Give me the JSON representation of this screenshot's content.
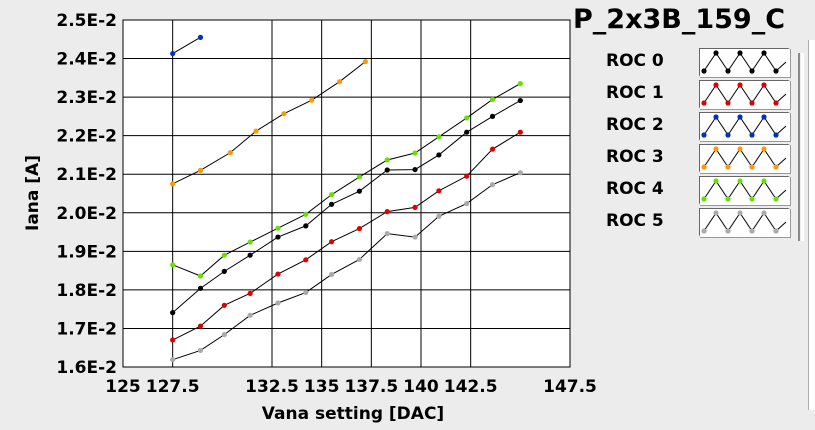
{
  "chart_data": {
    "type": "line",
    "title": "P_2x3B_159_C",
    "xlabel": "Vana setting [DAC]",
    "ylabel": "Iana [A]",
    "xlim": [
      125,
      147.5
    ],
    "ylim": [
      0.016,
      0.025
    ],
    "x_ticks": [
      125,
      127.5,
      132.5,
      135,
      137.5,
      140,
      142.5,
      147.5
    ],
    "x_tick_labels": [
      "125",
      "127.5",
      "132.5",
      "135",
      "137.5",
      "140",
      "142.5",
      "147.5"
    ],
    "y_ticks": [
      0.016,
      0.017,
      0.018,
      0.019,
      0.02,
      0.021,
      0.022,
      0.023,
      0.024,
      0.025
    ],
    "y_tick_labels": [
      "1.6E-2",
      "1.7E-2",
      "1.8E-2",
      "1.9E-2",
      "2.0E-2",
      "2.1E-2",
      "2.2E-2",
      "2.3E-2",
      "2.4E-2",
      "2.5E-2"
    ],
    "grid": true,
    "legend_position": "right",
    "series": [
      {
        "name": "ROC 0",
        "color": "#000000",
        "x": [
          127.5,
          128.9,
          130.1,
          131.4,
          132.8,
          134.2,
          135.5,
          136.9,
          138.3,
          139.7,
          140.9,
          142.3,
          143.6,
          145.0
        ],
        "y": [
          0.01741,
          0.01804,
          0.01848,
          0.0189,
          0.01937,
          0.01966,
          0.02022,
          0.02056,
          0.02111,
          0.02112,
          0.0215,
          0.02209,
          0.0225,
          0.02291
        ]
      },
      {
        "name": "ROC 0",
        "color": "#000000",
        "hidden_dup": true,
        "x": [],
        "y": []
      },
      {
        "name": "ROC 1",
        "color": "#e00000",
        "x": [
          127.5,
          128.9,
          130.1,
          131.4,
          132.8,
          134.2,
          135.5,
          136.9,
          138.3,
          139.7,
          140.9,
          142.3,
          143.6,
          145.0
        ],
        "y": [
          0.0167,
          0.01706,
          0.0176,
          0.01791,
          0.01841,
          0.01878,
          0.01925,
          0.01959,
          0.02003,
          0.02014,
          0.02057,
          0.02095,
          0.02165,
          0.02209
        ]
      },
      {
        "name": "ROC 2",
        "color": "#0030c0",
        "x": [
          127.5,
          128.9
        ],
        "y": [
          0.02413,
          0.02455
        ]
      },
      {
        "name": "ROC 3",
        "color": "#ff9900",
        "x": [
          127.5,
          128.9,
          130.4,
          131.7,
          133.1,
          134.5,
          135.9,
          137.2
        ],
        "y": [
          0.02075,
          0.0211,
          0.02156,
          0.02212,
          0.02257,
          0.02292,
          0.0234,
          0.02392
        ]
      },
      {
        "name": "ROC 4",
        "color": "#66e000",
        "x": [
          127.5,
          128.9,
          130.1,
          131.4,
          132.8,
          134.2,
          135.5,
          136.9,
          138.3,
          139.7,
          140.9,
          142.3,
          143.6,
          145.0
        ],
        "y": [
          0.01865,
          0.01836,
          0.0189,
          0.01924,
          0.0196,
          0.01996,
          0.02047,
          0.02093,
          0.02137,
          0.02155,
          0.02197,
          0.02246,
          0.02294,
          0.02335
        ]
      },
      {
        "name": "ROC 5",
        "color": "#aaaaaa",
        "x": [
          127.5,
          128.9,
          130.1,
          131.4,
          132.8,
          134.2,
          135.5,
          136.9,
          138.3,
          139.7,
          140.9,
          142.3,
          143.6,
          145.0
        ],
        "y": [
          0.01619,
          0.01643,
          0.01684,
          0.01734,
          0.01766,
          0.01793,
          0.0184,
          0.01879,
          0.01946,
          0.01937,
          0.01991,
          0.02024,
          0.02073,
          0.02104
        ]
      }
    ]
  },
  "legend": {
    "items": [
      {
        "label": "ROC 0",
        "color": "#000000"
      },
      {
        "label": "ROC 1",
        "color": "#e00000"
      },
      {
        "label": "ROC 2",
        "color": "#0030c0"
      },
      {
        "label": "ROC 3",
        "color": "#ff9900"
      },
      {
        "label": "ROC 4",
        "color": "#66e000"
      },
      {
        "label": "ROC 5",
        "color": "#aaaaaa"
      }
    ]
  }
}
